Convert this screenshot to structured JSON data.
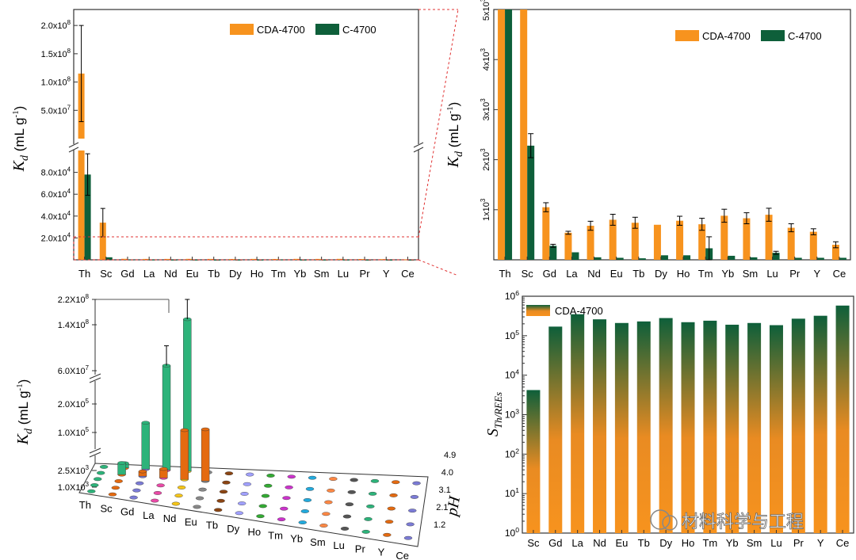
{
  "colors": {
    "orange": "#f7931e",
    "green": "#0e5f3a",
    "ref_line": "#e03030",
    "frame": "#333333"
  },
  "watermark": {
    "text": "材料科学与工程"
  },
  "chart_data": [
    {
      "id": "panel-a",
      "type": "bar",
      "categories": [
        "Th",
        "Sc",
        "Gd",
        "La",
        "Nd",
        "Eu",
        "Tb",
        "Dy",
        "Ho",
        "Tm",
        "Yb",
        "Sm",
        "Lu",
        "Pr",
        "Y",
        "Ce"
      ],
      "series": [
        {
          "name": "CDA-4700",
          "color": "#f7931e",
          "values": [
            115000000,
            34000,
            900,
            800,
            800,
            850,
            800,
            750,
            800,
            750,
            850,
            800,
            850,
            700,
            600,
            400
          ],
          "errors": [
            85000000,
            13000,
            0,
            0,
            0,
            0,
            0,
            0,
            0,
            0,
            0,
            0,
            0,
            0,
            0,
            0
          ]
        },
        {
          "name": "C-4700",
          "color": "#0e5f3a",
          "values": [
            78000,
            2300,
            300,
            200,
            100,
            100,
            50,
            100,
            100,
            300,
            100,
            100,
            150,
            50,
            50,
            50
          ],
          "errors": [
            19000,
            0,
            0,
            0,
            0,
            0,
            0,
            0,
            0,
            0,
            0,
            0,
            0,
            0,
            0,
            0
          ]
        }
      ],
      "ylabel_main": "K",
      "ylabel_sub": "d",
      "ylabel_unit": "(mL g",
      "ylabel_exp": "-1",
      "ylabel_close": ")",
      "axis_break": true,
      "lower_segment": {
        "ylim": [
          0,
          100000
        ],
        "ticks": [
          20000,
          40000,
          60000,
          80000
        ],
        "tick_labels": [
          "2.0x10",
          "4.0x10",
          "6.0x10",
          "8.0x10"
        ],
        "tick_exps": [
          "4",
          "4",
          "4",
          "4"
        ]
      },
      "upper_segment": {
        "ylim": [
          0,
          210000000
        ],
        "ticks": [
          50000000,
          100000000,
          150000000,
          200000000
        ],
        "tick_labels": [
          "5.0x10",
          "1.0x10",
          "1.5x10",
          "2.0x10"
        ],
        "tick_exps": [
          "7",
          "8",
          "8",
          "8"
        ]
      },
      "reference_line": 21000,
      "legend": "top-right"
    },
    {
      "id": "panel-b",
      "type": "bar",
      "categories": [
        "Th",
        "Sc",
        "Gd",
        "La",
        "Nd",
        "Eu",
        "Tb",
        "Dy",
        "Ho",
        "Tm",
        "Yb",
        "Sm",
        "Lu",
        "Pr",
        "Y",
        "Ce"
      ],
      "series": [
        {
          "name": "CDA-4700",
          "color": "#f7931e",
          "values": [
            5000,
            5000,
            1050,
            540,
            680,
            800,
            740,
            700,
            780,
            710,
            880,
            830,
            900,
            640,
            560,
            300
          ],
          "errors": [
            0,
            0,
            90,
            30,
            90,
            110,
            110,
            0,
            90,
            120,
            130,
            110,
            130,
            80,
            60,
            60
          ]
        },
        {
          "name": "C-4700",
          "color": "#0e5f3a",
          "values": [
            5000,
            2280,
            280,
            150,
            50,
            40,
            30,
            90,
            90,
            230,
            80,
            50,
            140,
            40,
            40,
            40
          ],
          "errors": [
            0,
            240,
            30,
            0,
            0,
            0,
            0,
            0,
            0,
            230,
            0,
            0,
            30,
            0,
            0,
            0
          ]
        }
      ],
      "ylabel_main": "K",
      "ylabel_sub": "d",
      "ylabel_unit": "(mL g",
      "ylabel_exp": "-1",
      "ylabel_close": ")",
      "ylim": [
        0,
        5000
      ],
      "ticks": [
        1000,
        2000,
        3000,
        4000,
        5000
      ],
      "tick_labels": [
        "1x10",
        "2x10",
        "3x10",
        "4x10",
        "5x10"
      ],
      "tick_exps": [
        "3",
        "3",
        "3",
        "3",
        "3"
      ],
      "legend": "top-right"
    },
    {
      "id": "panel-c",
      "type": "bar",
      "categories": [
        "Th",
        "Sc",
        "Gd",
        "La",
        "Nd",
        "Eu",
        "Tb",
        "Dy",
        "Ho",
        "Tm",
        "Yb",
        "Sm",
        "Lu",
        "Pr",
        "Y",
        "Ce"
      ],
      "ph_values": [
        "1.2",
        "2.1",
        "3.1",
        "4.0",
        "4.9"
      ],
      "ylabel_main": "K",
      "ylabel_sub": "d",
      "ylabel_unit": "(mL g",
      "ylabel_exp": "-1",
      "ylabel_close": ")",
      "zlabel": "pH",
      "tick_labels": [
        "1.0X10",
        "2.5X10",
        "1.0X10",
        "2.0X10",
        "6.0X10",
        "1.4X10",
        "2.2X10"
      ],
      "tick_exps": [
        "3",
        "3",
        "5",
        "5",
        "7",
        "8",
        "8"
      ],
      "highlight_bars": [
        {
          "category": "Sc",
          "ph": "4.9",
          "value": 1000,
          "color": "#2db37a"
        },
        {
          "category": "Sc",
          "ph": "4.0",
          "value": 2500,
          "color": "#2db37a"
        },
        {
          "category": "Gd",
          "ph": "4.9",
          "value": 90000,
          "color": "#2db37a"
        },
        {
          "category": "Gd",
          "ph": "4.0",
          "value": 1200,
          "color": "#e46a10"
        },
        {
          "category": "La",
          "ph": "4.9",
          "value": 25000000,
          "color": "#2db37a"
        },
        {
          "category": "La",
          "ph": "4.0",
          "value": 2000,
          "color": "#e46a10"
        },
        {
          "category": "Nd",
          "ph": "4.9",
          "value": 130000000,
          "color": "#2db37a"
        },
        {
          "category": "Nd",
          "ph": "4.0",
          "value": 80000,
          "color": "#e46a10"
        },
        {
          "category": "Eu",
          "ph": "4.0",
          "value": 95000,
          "color": "#e46a10"
        }
      ]
    },
    {
      "id": "panel-d",
      "type": "bar",
      "categories": [
        "Sc",
        "Gd",
        "La",
        "Nd",
        "Eu",
        "Tb",
        "Dy",
        "Ho",
        "Tm",
        "Yb",
        "Sm",
        "Lu",
        "Pr",
        "Y",
        "Ce"
      ],
      "series": [
        {
          "name": "CDA-4700",
          "values": [
            4200,
            170000,
            350000,
            260000,
            210000,
            230000,
            280000,
            220000,
            240000,
            190000,
            210000,
            185000,
            270000,
            320000,
            580000
          ]
        }
      ],
      "ylabel_main": "S",
      "ylabel_sub": "Th/REEs",
      "yscale": "log",
      "ylim": [
        1,
        1000000
      ],
      "tick_labels": [
        "10",
        "10",
        "10",
        "10",
        "10",
        "10",
        "10"
      ],
      "tick_exps": [
        "0",
        "1",
        "2",
        "3",
        "4",
        "5",
        "6"
      ],
      "legend": "top-left"
    }
  ]
}
